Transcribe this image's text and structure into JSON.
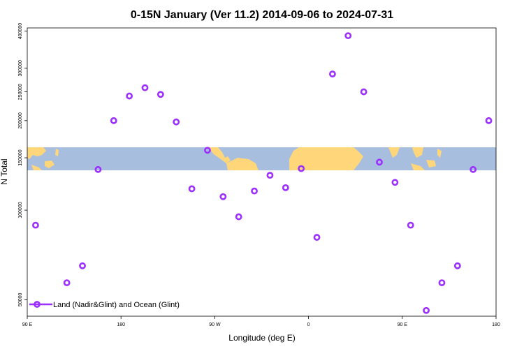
{
  "chart_data": {
    "type": "scatter",
    "title": "0-15N January (Ver 11.2)   2014-09-06 to 2024-07-31",
    "xlabel": "Longitude (deg E)",
    "ylabel": "N Total",
    "x_ticks": [
      {
        "value": 90,
        "label": "90 E"
      },
      {
        "value": 180,
        "label": "180"
      },
      {
        "value": 270,
        "label": "90 W"
      },
      {
        "value": 360,
        "label": "0"
      },
      {
        "value": 450,
        "label": "90 E"
      },
      {
        "value": 540,
        "label": "180"
      }
    ],
    "xlim": [
      90,
      540
    ],
    "y_scale": "log",
    "y_ticks": [
      50000,
      100000,
      150000,
      200000,
      250000,
      300000,
      400000
    ],
    "ylim": [
      44000,
      410000
    ],
    "map_band": {
      "ocean_color": "#a8bedf",
      "land_color": "#ffd67a"
    },
    "series": [
      {
        "name": "Land (Nadir&Glint) and Ocean (Glint)",
        "color": "#9b30ff",
        "points": [
          {
            "x": 98,
            "y": 89000
          },
          {
            "x": 128,
            "y": 57000
          },
          {
            "x": 143,
            "y": 65000
          },
          {
            "x": 158,
            "y": 137000
          },
          {
            "x": 173,
            "y": 200000
          },
          {
            "x": 188,
            "y": 242000
          },
          {
            "x": 203,
            "y": 258000
          },
          {
            "x": 218,
            "y": 245000
          },
          {
            "x": 233,
            "y": 198000
          },
          {
            "x": 248,
            "y": 118000
          },
          {
            "x": 263,
            "y": 159000
          },
          {
            "x": 278,
            "y": 111000
          },
          {
            "x": 293,
            "y": 95000
          },
          {
            "x": 308,
            "y": 116000
          },
          {
            "x": 323,
            "y": 131000
          },
          {
            "x": 338,
            "y": 119000
          },
          {
            "x": 353,
            "y": 138000
          },
          {
            "x": 368,
            "y": 81000
          },
          {
            "x": 383,
            "y": 287000
          },
          {
            "x": 398,
            "y": 386000
          },
          {
            "x": 413,
            "y": 250000
          },
          {
            "x": 428,
            "y": 145000
          },
          {
            "x": 443,
            "y": 124000
          },
          {
            "x": 458,
            "y": 89000
          },
          {
            "x": 473,
            "y": 46000
          },
          {
            "x": 488,
            "y": 57000
          },
          {
            "x": 503,
            "y": 65000
          },
          {
            "x": 518,
            "y": 137000
          },
          {
            "x": 533,
            "y": 200000
          }
        ]
      }
    ],
    "legend": {
      "position": "bottom-left",
      "label": "Land (Nadir&Glint) and Ocean (Glint)"
    }
  }
}
